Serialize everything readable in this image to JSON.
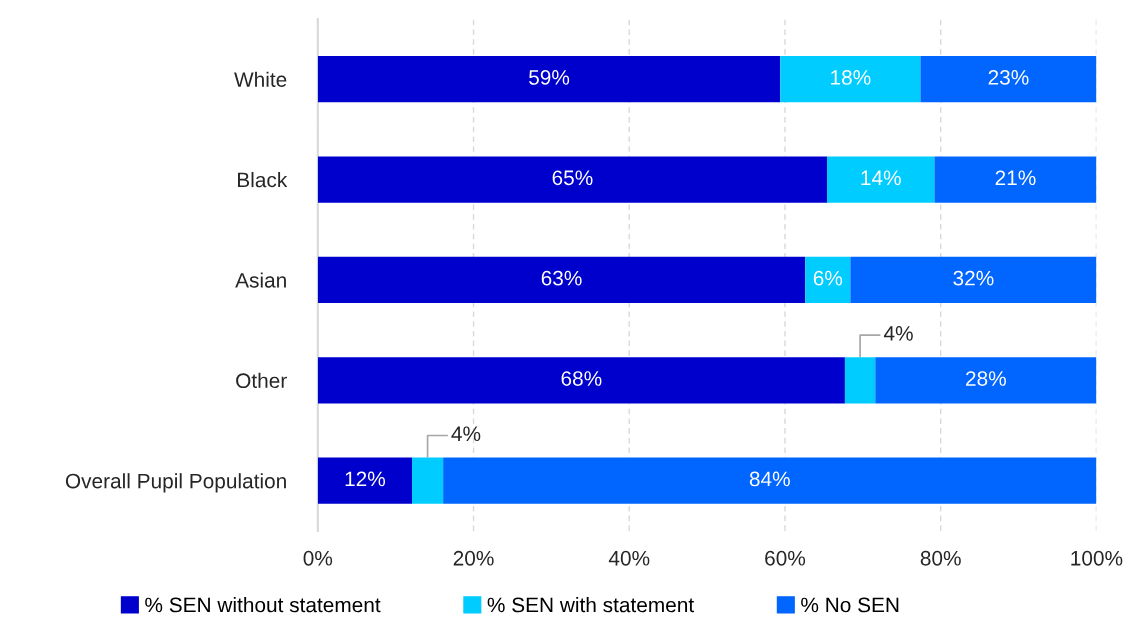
{
  "chart_data": {
    "type": "bar",
    "orientation": "horizontal",
    "stacked": true,
    "categories": [
      "White",
      "Black",
      "Asian",
      "Other",
      "Overall Pupil Population"
    ],
    "series": [
      {
        "name": "% SEN without statement",
        "color": "#0000cc",
        "values": [
          59.4,
          65.4,
          62.6,
          67.7,
          12.1
        ],
        "value_labels": [
          "59%",
          "65%",
          "63%",
          "68%",
          "12%"
        ]
      },
      {
        "name": "% SEN with statement",
        "color": "#00ccff",
        "values": [
          18.0,
          13.8,
          5.8,
          3.9,
          4.0
        ],
        "value_labels": [
          "18%",
          "14%",
          "6%",
          "4%",
          "4%"
        ]
      },
      {
        "name": "% No SEN",
        "color": "#0066ff",
        "values": [
          22.6,
          20.8,
          31.6,
          28.4,
          83.9
        ],
        "value_labels": [
          "23%",
          "21%",
          "32%",
          "28%",
          "84%"
        ]
      }
    ],
    "xlim": [
      0,
      100
    ],
    "xticks": [
      {
        "value": 0,
        "label": "0%"
      },
      {
        "value": 20,
        "label": "20%"
      },
      {
        "value": 40,
        "label": "40%"
      },
      {
        "value": 60,
        "label": "60%"
      },
      {
        "value": 80,
        "label": "80%"
      },
      {
        "value": 100,
        "label": "100%"
      }
    ],
    "grid": "x",
    "legend": "bottom"
  }
}
